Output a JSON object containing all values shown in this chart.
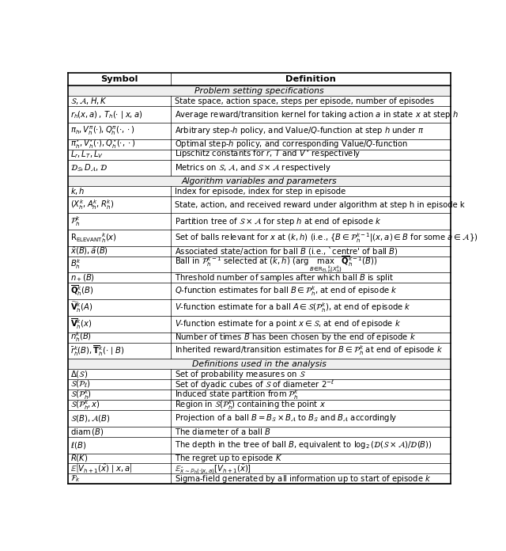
{
  "col1_header": "Symbol",
  "col2_header": "Definition",
  "sections": [
    {
      "section_title": "Problem setting specifications",
      "rows": [
        [
          "$\\mathcal{S}, \\mathcal{A}, H, K$",
          "State space, action space, steps per episode, number of episodes"
        ],
        [
          "$r_h(x,a)\\,,\\,T_h(\\cdot\\mid x,a)$",
          "Average reward/transition kernel for taking action $a$ in state $x$ at step $h$"
        ],
        [
          "$\\pi_h, V_h^{\\pi}(\\cdot), Q_h^{\\pi}(\\cdot,\\cdot)$",
          "Arbitrary step-$h$ policy, and Value/$Q$-function at step $h$ under $\\pi$"
        ],
        [
          "$\\pi_h^{\\star}, V_h^{\\star}(\\cdot), Q_h^{\\star}(\\cdot,\\cdot)$",
          "Optimal step-$h$ policy, and corresponding Value/$Q$-function"
        ],
        [
          "$L_r, L_T, L_V$",
          "Lipschitz constants for $r$, $T$ and $V^{\\star}$ respectively"
        ],
        [
          "$\\mathcal{D}_{\\mathcal{S}}, D_{\\mathcal{A}}, \\mathcal{D}$",
          "Metrics on $\\mathcal{S}$, $\\mathcal{A}$, and $\\mathcal{S}\\times\\mathcal{A}$ respectively"
        ]
      ]
    },
    {
      "section_title": "Algorithm variables and parameters",
      "rows": [
        [
          "$k, h$",
          "Index for episode, index for step in episode"
        ],
        [
          "$(X_h^k, A_h^k, R_h^k)$",
          "State, action, and received reward under algorithm at step h in episode k"
        ],
        [
          "$\\mathcal{P}_h^k$",
          "Partition tree of $\\mathcal{S}\\times\\mathcal{A}$ for step $h$ at end of episode $k$"
        ],
        [
          "$\\mathrm{R_{ELEVANT}}_h^k(x)$",
          "Set of balls relevant for $x$ at $(k,h)$ (i.e., $\\{B\\in\\mathcal{P}_h^{k-1}|(x,a)\\in B$ for some $a\\in\\mathcal{A}\\}$)"
        ],
        [
          "$\\tilde{x}(B), \\tilde{a}(B)$",
          "Associated state/action for ball $B$ (i.e., `centre' of ball $B$)"
        ],
        [
          "$B_h^k$",
          "Ball in $\\mathcal{P}_h^{k-1}$ selected at $(k,h)$ ($\\arg\\max_{B\\in\\mathrm{R_{EL}}_h^k(X_h^k)}\\overline{\\mathbf{Q}}_h^{k-1}(B)$)"
        ],
        [
          "$n_+(B)$",
          "Threshold number of samples after which ball $B$ is split"
        ],
        [
          "$\\overline{\\mathbf{Q}}_h^k(B)$",
          "$Q$-function estimates for ball $B\\in\\mathcal{P}_h^k$, at end of episode $k$"
        ],
        [
          "$\\widetilde{\\mathbf{V}}_h^k(A)$",
          "$V$-function estimate for a ball $A\\in\\mathcal{S}(\\mathcal{P}_h^k)$, at end of episode $k$"
        ],
        [
          "$\\overline{\\mathbf{V}}_h^k(x)$",
          "$V$-function estimate for a point $x\\in\\mathcal{S}$, at end of episode $k$"
        ],
        [
          "$n_h^k(B)$",
          "Number of times $B$ has been chosen by the end of episode $k$"
        ],
        [
          "$\\bar{r}_h^k(B), \\overline{\\mathbf{T}}_h^k(\\cdot\\mid B)$",
          "Inherited reward/transition estimates for $B\\in\\mathcal{P}_h^k$ at end of episode $k$"
        ]
      ]
    },
    {
      "section_title": "Definitions used in the analysis",
      "rows": [
        [
          "$\\Delta(\\mathcal{S})$",
          "Set of probability measures on $\\mathcal{S}$"
        ],
        [
          "$\\mathcal{S}(\\mathcal{P}_{\\ell})$",
          "Set of dyadic cubes of $\\mathcal{S}$ of diameter $2^{-\\ell}$"
        ],
        [
          "$\\mathcal{S}(\\mathcal{P}_h^k)$",
          "Induced state partition from $\\mathcal{P}_h^k$"
        ],
        [
          "$\\mathcal{S}(\\mathcal{P}_h^k, x)$",
          "Region in $\\mathcal{S}(\\mathcal{P}_h^k)$ containing the point $x$"
        ],
        [
          "$\\mathcal{S}(B), \\mathcal{A}(B)$",
          "Projection of a ball $B = B_{\\mathcal{S}}\\times B_{\\mathcal{A}}$ to $B_{\\mathcal{S}}$ and $B_{\\mathcal{A}}$ accordingly"
        ],
        [
          "$\\mathrm{diam}\\,(B)$",
          "The diameter of a ball $B$"
        ],
        [
          "$\\ell(B)$",
          "The depth in the tree of ball $B$, equivalent to $\\log_2(\\mathcal{D}(\\mathcal{S}\\times\\mathcal{A})/\\mathcal{D}(B))$"
        ],
        [
          "$R(K)$",
          "The regret up to episode $K$"
        ],
        [
          "$\\mathbb{E}\\left[V_{h+1}(\\hat{x})\\mid x,a\\right]$",
          "$\\mathbb{E}_{\\hat{x}\\sim\\mathbb{P}_h(\\cdot|x,a)}[V_{h+1}(\\hat{x})]$"
        ],
        [
          "$\\mathcal{F}_k$",
          "Sigma-field generated by all information up to start of episode $k$"
        ]
      ]
    }
  ],
  "fig_width": 6.4,
  "fig_height": 6.96,
  "dpi": 100,
  "col_split": 0.275,
  "font_size": 7.2,
  "section_font_size": 7.8,
  "header_font_size": 8.2,
  "bg_color": "#ffffff",
  "line_color": "#000000",
  "row_heights": {
    "header": 1.3,
    "section": 1.0,
    "row_short": 1.0,
    "row_long": 1.6
  },
  "long_row_threshold": 70
}
